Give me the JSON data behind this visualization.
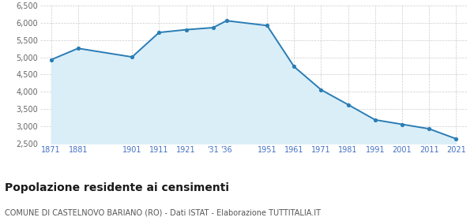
{
  "years": [
    1871,
    1881,
    1901,
    1911,
    1921,
    1931,
    1936,
    1951,
    1961,
    1971,
    1981,
    1991,
    2001,
    2011,
    2021
  ],
  "population": [
    4930,
    5260,
    5010,
    5720,
    5800,
    5860,
    6060,
    5920,
    4730,
    4060,
    3630,
    3190,
    3060,
    2930,
    2640
  ],
  "x_labels": [
    "1871",
    "1881",
    "1901",
    "1911",
    "1921",
    "'31",
    "'36",
    "1951",
    "1961",
    "1971",
    "1981",
    "1991",
    "2001",
    "2011",
    "2021"
  ],
  "line_color": "#2a7db5",
  "fill_color": "#daeef8",
  "marker_color": "#2a7db5",
  "bg_color": "#ffffff",
  "grid_color": "#cccccc",
  "ylim_min": 2500,
  "ylim_max": 6500,
  "yticks": [
    2500,
    3000,
    3500,
    4000,
    4500,
    5000,
    5500,
    6000,
    6500
  ],
  "ytick_labels": [
    "2,500",
    "3,000",
    "3,500",
    "4,000",
    "4,500",
    "5,000",
    "5,500",
    "6,000",
    "6,500"
  ],
  "title": "Popolazione residente ai censimenti",
  "subtitle": "COMUNE DI CASTELNOVO BARIANO (RO) - Dati ISTAT - Elaborazione TUTTITALIA.IT",
  "title_fontsize": 10,
  "subtitle_fontsize": 7,
  "tick_fontsize": 7,
  "xtick_color": "#4472c4",
  "ytick_color": "#666666"
}
